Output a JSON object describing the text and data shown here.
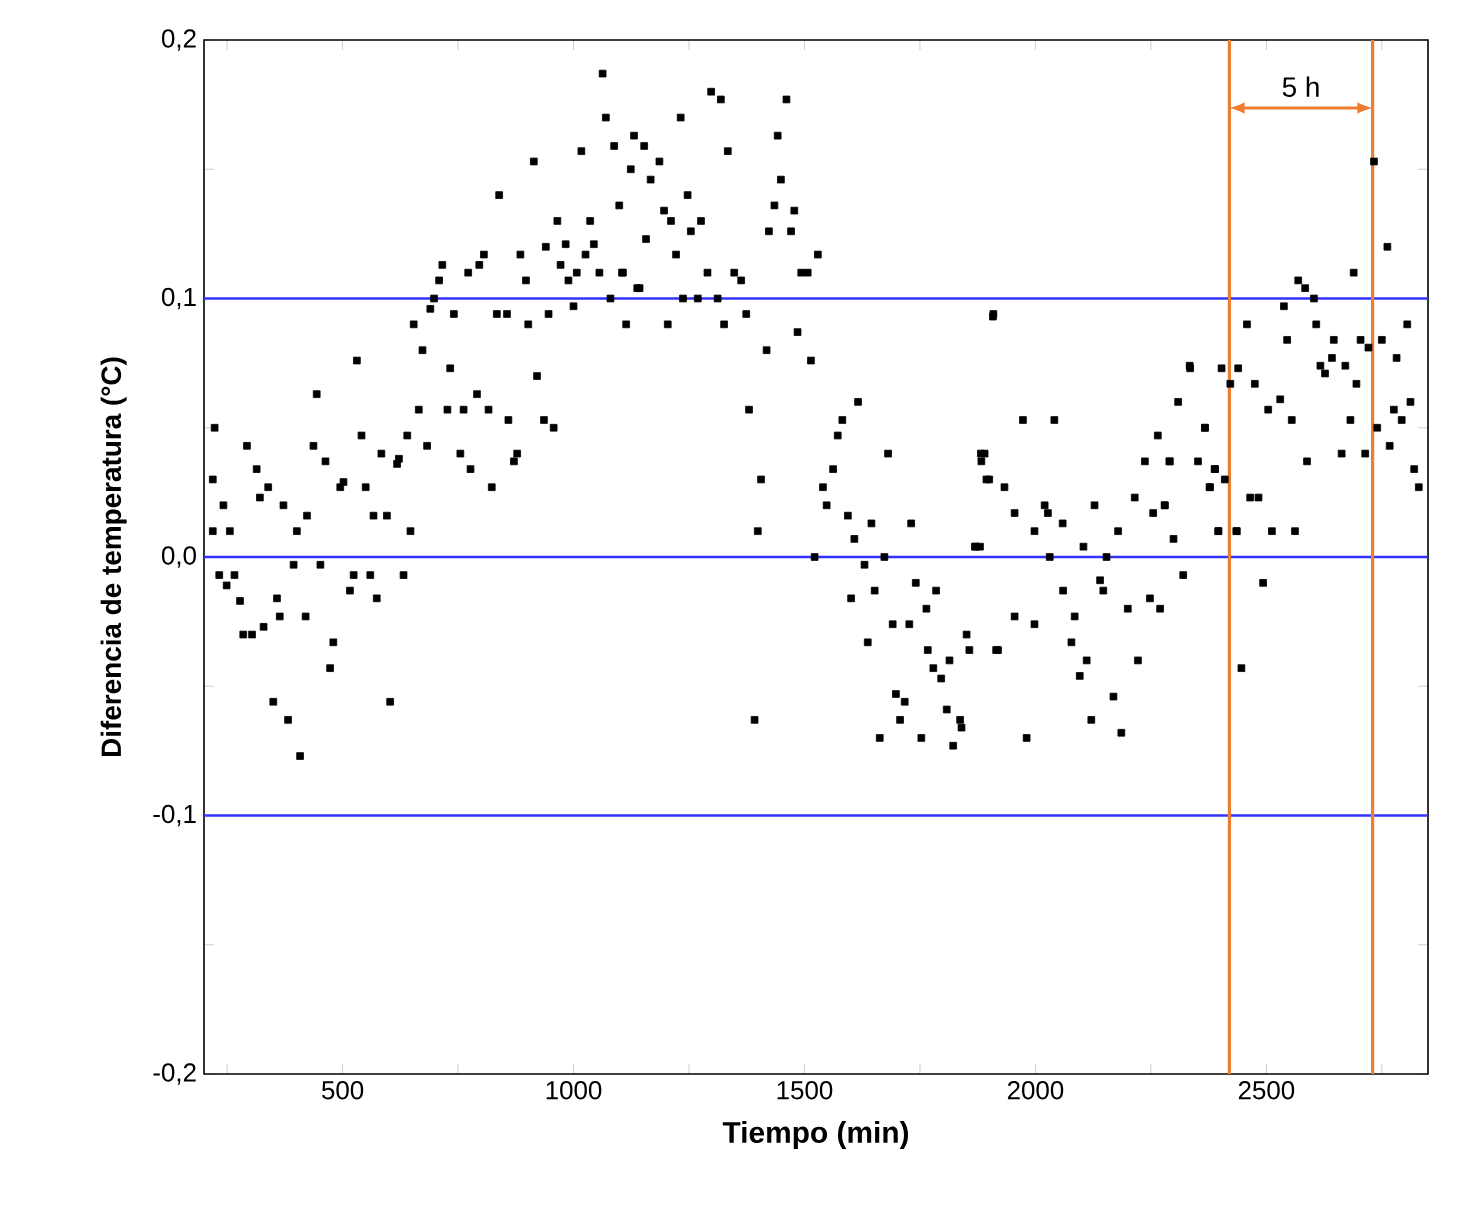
{
  "chart_data": {
    "type": "scatter",
    "xlabel": "Tiempo (min)",
    "ylabel": "Diferencia de temperatura (°C)",
    "xlim": [
      200,
      2850
    ],
    "ylim": [
      -0.2,
      0.2
    ],
    "xticks": [
      {
        "value": 250,
        "label": null
      },
      500,
      {
        "value": 750,
        "label": null
      },
      1000,
      {
        "value": 1250,
        "label": null
      },
      1500,
      {
        "value": 1750,
        "label": null
      },
      2000,
      {
        "value": 2250,
        "label": null
      },
      2500,
      {
        "value": 2750,
        "label": null
      }
    ],
    "yticks": [
      {
        "value": -0.2,
        "label": "-0,2"
      },
      {
        "value": -0.15,
        "label": null
      },
      {
        "value": -0.1,
        "label": "-0,1"
      },
      {
        "value": -0.05,
        "label": null
      },
      {
        "value": 0.0,
        "label": "0,0"
      },
      {
        "value": 0.05,
        "label": null
      },
      {
        "value": 0.1,
        "label": "0,1"
      },
      {
        "value": 0.15,
        "label": null
      },
      {
        "value": 0.2,
        "label": "0,2"
      }
    ],
    "marker": "square",
    "grid": false,
    "ref_lines": [
      {
        "axis": "y",
        "value": 0.1,
        "color": "#3333ff"
      },
      {
        "axis": "y",
        "value": 0.0,
        "color": "#3333ff"
      },
      {
        "axis": "y",
        "value": -0.1,
        "color": "#3333ff"
      },
      {
        "axis": "x",
        "value": 2420,
        "color": "#ed7d31"
      },
      {
        "axis": "x",
        "value": 2730,
        "color": "#ed7d31"
      }
    ],
    "annotations": [
      "5 h"
    ],
    "series": [
      {
        "color": "#000000",
        "x": [
          223,
          219,
          242,
          219,
          256,
          293,
          314,
          321,
          339,
          372,
          401,
          423,
          394,
          452,
          437,
          444,
          463,
          495,
          502,
          531,
          541,
          550,
          567,
          596,
          584,
          618,
          622,
          640,
          647,
          654,
          673,
          665,
          683,
          690,
          698,
          709,
          716,
          727,
          733,
          741,
          755,
          762,
          772,
          777,
          791,
          796,
          806,
          816,
          823,
          839,
          834,
          856,
          859,
          871,
          878,
          885,
          897,
          902,
          914,
          921,
          936,
          940,
          946,
          957,
          965,
          972,
          983,
          989,
          1000,
          1007,
          1017,
          1026,
          1036,
          1044,
          1056,
          1063,
          1070,
          1080,
          1088,
          1099,
          1105,
          1114,
          1124,
          1131,
          1138,
          233,
          249,
          266,
          278,
          285,
          304,
          329,
          350,
          358,
          364,
          382,
          408,
          420,
          473,
          480,
          516,
          524,
          560,
          574,
          603,
          632,
          1153,
          1167,
          1186,
          1157,
          1196,
          1211,
          1222,
          1232,
          1247,
          1254,
          1276,
          1298,
          1319,
          1334,
          1290,
          1348,
          1363,
          1107,
          1143,
          1204,
          1237,
          1269,
          1312,
          1326,
          1374,
          1423,
          1442,
          1449,
          1461,
          1435,
          1471,
          1478,
          1493,
          1507,
          1529,
          1418,
          1485,
          1514,
          1380,
          1406,
          1399,
          1392,
          1522,
          1616,
          1582,
          1572,
          1562,
          1540,
          1548,
          1594,
          1608,
          1645,
          1681,
          1731,
          1630,
          1673,
          1601,
          1652,
          1741,
          1764,
          1785,
          1637,
          1691,
          1727,
          1767,
          1851,
          1857,
          1915,
          1779,
          1796,
          1814,
          1698,
          1717,
          1707,
          1663,
          1753,
          1808,
          1837,
          1840,
          1822,
          1869,
          1880,
          1883,
          1890,
          1900,
          1909,
          1908,
          1973,
          2041,
          1882,
          1894,
          1933,
          1955,
          2020,
          2027,
          1998,
          2059,
          2128,
          2179,
          1871,
          2031,
          2104,
          2154,
          2215,
          2255,
          2280,
          2299,
          2265,
          2237,
          2291,
          2309,
          2335,
          2352,
          2367,
          2388,
          2378,
          2410,
          2403,
          2439,
          2422,
          2475,
          2458,
          2396,
          2436,
          2465,
          2320,
          1919,
          1955,
          1998,
          2060,
          2140,
          2147,
          2085,
          2078,
          2111,
          2096,
          2200,
          2248,
          2270,
          2222,
          2169,
          2121,
          1981,
          2186,
          2446,
          2733,
          2762,
          2689,
          2569,
          2584,
          2603,
          2538,
          2545,
          2608,
          2646,
          2704,
          2750,
          2721,
          2805,
          2782,
          2334,
          2617,
          2642,
          2671,
          2627,
          2695,
          2530,
          2504,
          2812,
          2776,
          2793,
          2555,
          2682,
          2740,
          2367,
          2767,
          2663,
          2714,
          2588,
          2290,
          2389,
          2377,
          2483,
          2820,
          2830,
          2280,
          2396,
          2435,
          2512,
          2562,
          2493
        ],
        "values": [
          0.05,
          0.03,
          0.02,
          0.01,
          0.01,
          0.043,
          0.034,
          0.023,
          0.027,
          0.02,
          0.01,
          0.016,
          -0.003,
          -0.003,
          0.043,
          0.063,
          0.037,
          0.027,
          0.029,
          0.076,
          0.047,
          0.027,
          0.016,
          0.016,
          0.04,
          0.036,
          0.038,
          0.047,
          0.01,
          0.09,
          0.08,
          0.057,
          0.043,
          0.096,
          0.1,
          0.107,
          0.113,
          0.057,
          0.073,
          0.094,
          0.04,
          0.057,
          0.11,
          0.034,
          0.063,
          0.113,
          0.117,
          0.057,
          0.027,
          0.14,
          0.094,
          0.094,
          0.053,
          0.037,
          0.04,
          0.117,
          0.107,
          0.09,
          0.153,
          0.07,
          0.053,
          0.12,
          0.094,
          0.05,
          0.13,
          0.113,
          0.121,
          0.107,
          0.097,
          0.11,
          0.157,
          0.117,
          0.13,
          0.121,
          0.11,
          0.187,
          0.17,
          0.1,
          0.159,
          0.136,
          0.11,
          0.09,
          0.15,
          0.163,
          0.104,
          -0.007,
          -0.011,
          -0.007,
          -0.017,
          -0.03,
          -0.03,
          -0.027,
          -0.056,
          -0.016,
          -0.023,
          -0.063,
          -0.077,
          -0.023,
          -0.043,
          -0.033,
          -0.013,
          -0.007,
          -0.007,
          -0.016,
          -0.056,
          -0.007,
          0.159,
          0.146,
          0.153,
          0.123,
          0.134,
          0.13,
          0.117,
          0.17,
          0.14,
          0.126,
          0.13,
          0.18,
          0.177,
          0.157,
          0.11,
          0.11,
          0.107,
          0.11,
          0.104,
          0.09,
          0.1,
          0.1,
          0.1,
          0.09,
          0.094,
          0.126,
          0.163,
          0.146,
          0.177,
          0.136,
          0.126,
          0.134,
          0.11,
          0.11,
          0.117,
          0.08,
          0.087,
          0.076,
          0.057,
          0.03,
          0.01,
          -0.063,
          0.0,
          0.06,
          0.053,
          0.047,
          0.034,
          0.027,
          0.02,
          0.016,
          0.007,
          0.013,
          0.04,
          0.013,
          -0.003,
          0.0,
          -0.016,
          -0.013,
          -0.01,
          -0.02,
          -0.013,
          -0.033,
          -0.026,
          -0.026,
          -0.036,
          -0.03,
          -0.036,
          -0.036,
          -0.043,
          -0.047,
          -0.04,
          -0.053,
          -0.056,
          -0.063,
          -0.07,
          -0.07,
          -0.059,
          -0.063,
          -0.066,
          -0.073,
          0.004,
          0.004,
          0.037,
          0.04,
          0.03,
          0.094,
          0.093,
          0.053,
          0.053,
          0.04,
          0.03,
          0.027,
          0.017,
          0.02,
          0.017,
          0.01,
          0.013,
          0.02,
          0.01,
          0.004,
          0.0,
          0.004,
          0.0,
          0.023,
          0.017,
          0.02,
          0.007,
          0.047,
          0.037,
          0.037,
          0.06,
          0.073,
          0.037,
          0.05,
          0.034,
          0.027,
          0.03,
          0.073,
          0.073,
          0.067,
          0.067,
          0.09,
          0.01,
          0.01,
          0.023,
          -0.007,
          -0.036,
          -0.023,
          -0.026,
          -0.013,
          -0.009,
          -0.013,
          -0.023,
          -0.033,
          -0.04,
          -0.046,
          -0.02,
          -0.016,
          -0.02,
          -0.04,
          -0.054,
          -0.063,
          -0.07,
          -0.068,
          -0.043,
          0.153,
          0.12,
          0.11,
          0.107,
          0.104,
          0.1,
          0.097,
          0.084,
          0.09,
          0.084,
          0.084,
          0.084,
          0.081,
          0.09,
          0.077,
          0.074,
          0.074,
          0.077,
          0.074,
          0.071,
          0.067,
          0.061,
          0.057,
          0.06,
          0.057,
          0.053,
          0.053,
          0.053,
          0.05,
          0.05,
          0.043,
          0.04,
          0.04,
          0.037,
          0.037,
          0.034,
          0.027,
          0.023,
          0.034,
          0.027,
          0.02,
          0.01,
          0.01,
          0.01,
          0.01,
          -0.01
        ]
      }
    ]
  }
}
